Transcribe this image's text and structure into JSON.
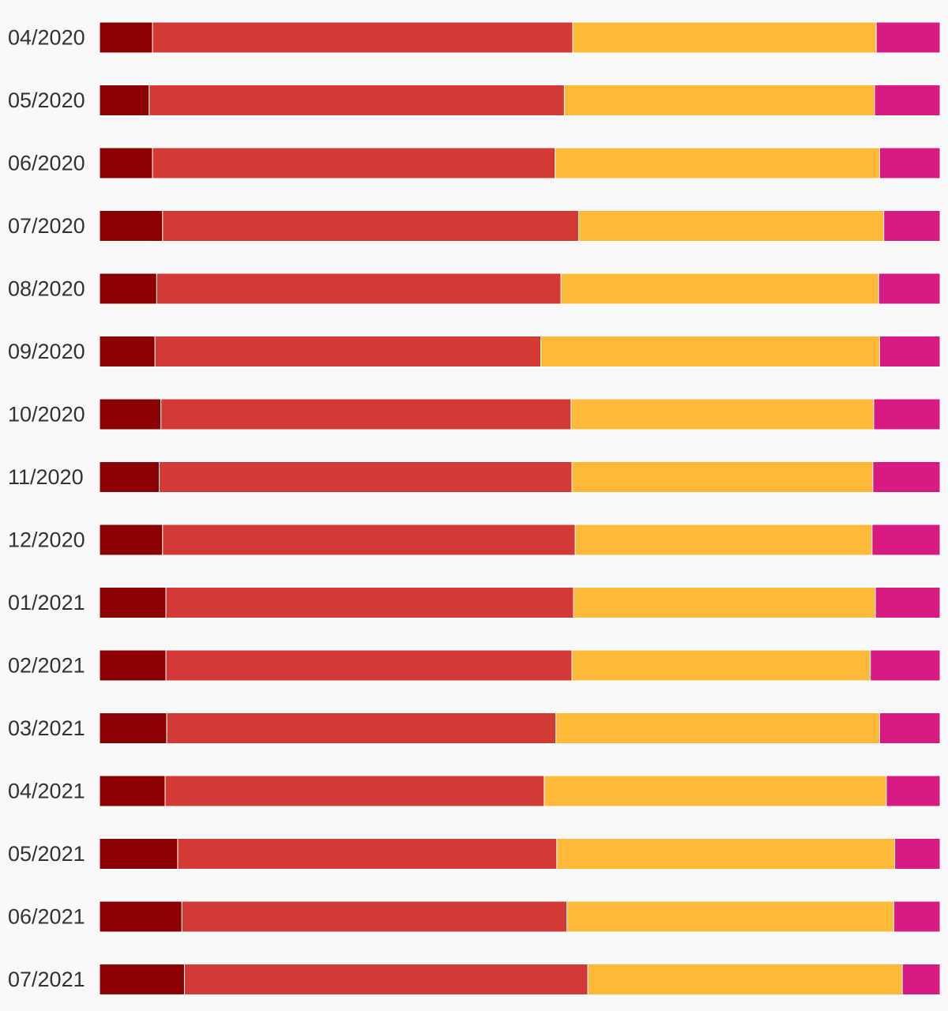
{
  "chart_data": {
    "type": "bar",
    "orientation": "horizontal",
    "stacked": "100%",
    "title": "",
    "xlabel": "",
    "ylabel": "",
    "xlim": [
      0,
      1
    ],
    "grid": false,
    "legend": "none",
    "categories": [
      "04/2020",
      "05/2020",
      "06/2020",
      "07/2020",
      "08/2020",
      "09/2020",
      "10/2020",
      "11/2020",
      "12/2020",
      "01/2021",
      "02/2021",
      "03/2021",
      "04/2021",
      "05/2021",
      "06/2021",
      "07/2021"
    ],
    "series": [
      {
        "color": "#8b0000",
        "values": [
          0.063,
          0.059,
          0.063,
          0.075,
          0.068,
          0.066,
          0.073,
          0.071,
          0.075,
          0.079,
          0.079,
          0.08,
          0.078,
          0.093,
          0.098,
          0.101
        ]
      },
      {
        "color": "#d33a35",
        "values": [
          0.5,
          0.494,
          0.479,
          0.495,
          0.481,
          0.459,
          0.488,
          0.491,
          0.491,
          0.485,
          0.483,
          0.463,
          0.451,
          0.451,
          0.458,
          0.48
        ]
      },
      {
        "color": "#ffb938",
        "values": [
          0.361,
          0.369,
          0.386,
          0.363,
          0.378,
          0.403,
          0.36,
          0.358,
          0.353,
          0.359,
          0.355,
          0.385,
          0.407,
          0.402,
          0.389,
          0.374
        ]
      },
      {
        "color": "#d81b84",
        "values": [
          0.076,
          0.078,
          0.072,
          0.067,
          0.073,
          0.072,
          0.079,
          0.08,
          0.081,
          0.077,
          0.083,
          0.072,
          0.064,
          0.054,
          0.055,
          0.045
        ]
      }
    ]
  }
}
